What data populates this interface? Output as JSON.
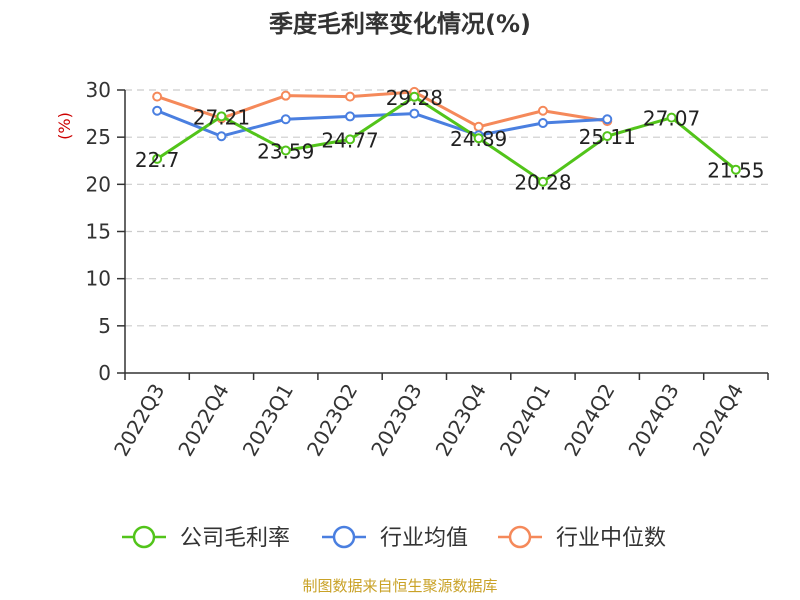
{
  "chart_data": {
    "type": "line",
    "title": "季度毛利率变化情况(%)",
    "ylabel": "(%)",
    "xlabel": "",
    "categories": [
      "2022Q3",
      "2022Q4",
      "2023Q1",
      "2023Q2",
      "2023Q3",
      "2023Q4",
      "2024Q1",
      "2024Q2",
      "2024Q3",
      "2024Q4"
    ],
    "ylim": [
      0,
      30
    ],
    "yticks": [
      "0",
      "5",
      "10",
      "15",
      "20",
      "25",
      "30"
    ],
    "grid": true,
    "legend_position": "bottom",
    "series": [
      {
        "name": "公司毛利率",
        "color": "#52c41a",
        "values": [
          22.7,
          27.21,
          23.59,
          24.77,
          29.28,
          24.89,
          20.28,
          25.11,
          27.07,
          21.55
        ],
        "labels": [
          "22.7",
          "27.21",
          "23.59",
          "24.77",
          "29.28",
          "24.89",
          "20.28",
          "25.11",
          "27.07",
          "21.55"
        ]
      },
      {
        "name": "行业均值",
        "color": "#4a7fe0",
        "values": [
          27.8,
          25.1,
          26.9,
          27.2,
          27.5,
          25.2,
          26.5,
          26.9,
          null,
          null
        ]
      },
      {
        "name": "行业中位数",
        "color": "#f5895a",
        "values": [
          29.3,
          27.0,
          29.4,
          29.3,
          29.8,
          26.1,
          27.8,
          26.7,
          null,
          null
        ]
      }
    ]
  },
  "source": "制图数据来自恒生聚源数据库",
  "colors": {
    "ylabel": "#cc0000",
    "source": "#c9a227",
    "grid": "#cccccc",
    "axis": "#333333"
  }
}
